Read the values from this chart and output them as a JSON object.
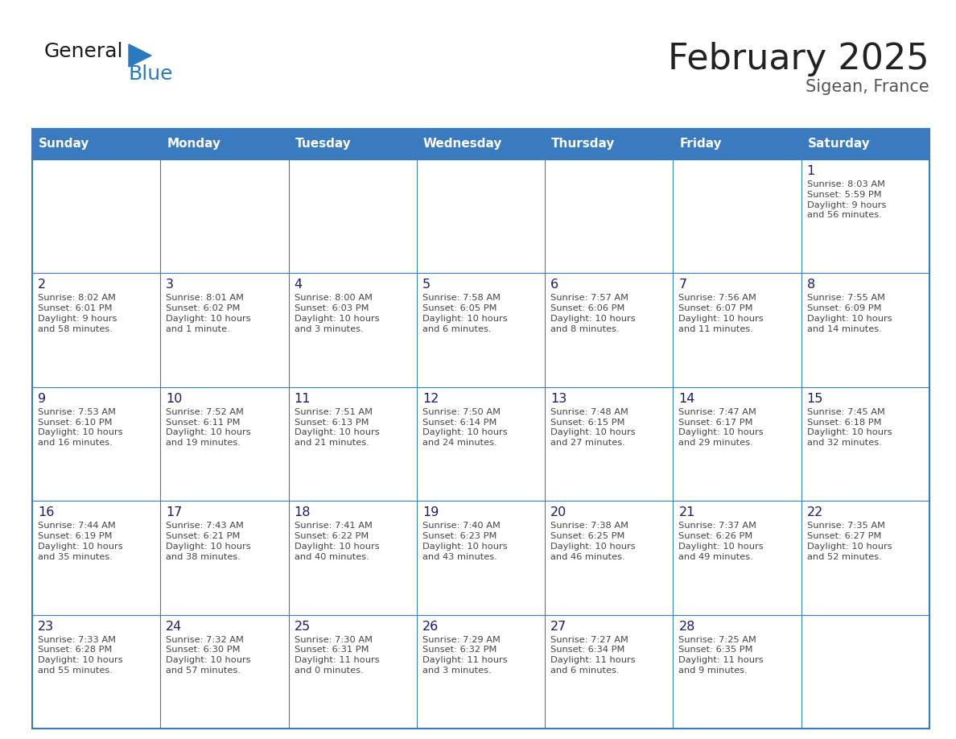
{
  "title": "February 2025",
  "subtitle": "Sigean, France",
  "days_of_week": [
    "Sunday",
    "Monday",
    "Tuesday",
    "Wednesday",
    "Thursday",
    "Friday",
    "Saturday"
  ],
  "header_bg": "#3a7abf",
  "header_text": "#ffffff",
  "cell_bg": "#ffffff",
  "border_color": "#3a7abf",
  "day_number_color": "#1a1a6e",
  "info_text_color": "#444444",
  "title_color": "#222222",
  "logo_general_color": "#1a1a1a",
  "logo_blue_color": "#2a7abf",
  "logo_triangle_color": "#2a7abf",
  "calendar": [
    [
      null,
      null,
      null,
      null,
      null,
      null,
      1
    ],
    [
      2,
      3,
      4,
      5,
      6,
      7,
      8
    ],
    [
      9,
      10,
      11,
      12,
      13,
      14,
      15
    ],
    [
      16,
      17,
      18,
      19,
      20,
      21,
      22
    ],
    [
      23,
      24,
      25,
      26,
      27,
      28,
      null
    ]
  ],
  "sunrise_data": {
    "1": "Sunrise: 8:03 AM\nSunset: 5:59 PM\nDaylight: 9 hours\nand 56 minutes.",
    "2": "Sunrise: 8:02 AM\nSunset: 6:01 PM\nDaylight: 9 hours\nand 58 minutes.",
    "3": "Sunrise: 8:01 AM\nSunset: 6:02 PM\nDaylight: 10 hours\nand 1 minute.",
    "4": "Sunrise: 8:00 AM\nSunset: 6:03 PM\nDaylight: 10 hours\nand 3 minutes.",
    "5": "Sunrise: 7:58 AM\nSunset: 6:05 PM\nDaylight: 10 hours\nand 6 minutes.",
    "6": "Sunrise: 7:57 AM\nSunset: 6:06 PM\nDaylight: 10 hours\nand 8 minutes.",
    "7": "Sunrise: 7:56 AM\nSunset: 6:07 PM\nDaylight: 10 hours\nand 11 minutes.",
    "8": "Sunrise: 7:55 AM\nSunset: 6:09 PM\nDaylight: 10 hours\nand 14 minutes.",
    "9": "Sunrise: 7:53 AM\nSunset: 6:10 PM\nDaylight: 10 hours\nand 16 minutes.",
    "10": "Sunrise: 7:52 AM\nSunset: 6:11 PM\nDaylight: 10 hours\nand 19 minutes.",
    "11": "Sunrise: 7:51 AM\nSunset: 6:13 PM\nDaylight: 10 hours\nand 21 minutes.",
    "12": "Sunrise: 7:50 AM\nSunset: 6:14 PM\nDaylight: 10 hours\nand 24 minutes.",
    "13": "Sunrise: 7:48 AM\nSunset: 6:15 PM\nDaylight: 10 hours\nand 27 minutes.",
    "14": "Sunrise: 7:47 AM\nSunset: 6:17 PM\nDaylight: 10 hours\nand 29 minutes.",
    "15": "Sunrise: 7:45 AM\nSunset: 6:18 PM\nDaylight: 10 hours\nand 32 minutes.",
    "16": "Sunrise: 7:44 AM\nSunset: 6:19 PM\nDaylight: 10 hours\nand 35 minutes.",
    "17": "Sunrise: 7:43 AM\nSunset: 6:21 PM\nDaylight: 10 hours\nand 38 minutes.",
    "18": "Sunrise: 7:41 AM\nSunset: 6:22 PM\nDaylight: 10 hours\nand 40 minutes.",
    "19": "Sunrise: 7:40 AM\nSunset: 6:23 PM\nDaylight: 10 hours\nand 43 minutes.",
    "20": "Sunrise: 7:38 AM\nSunset: 6:25 PM\nDaylight: 10 hours\nand 46 minutes.",
    "21": "Sunrise: 7:37 AM\nSunset: 6:26 PM\nDaylight: 10 hours\nand 49 minutes.",
    "22": "Sunrise: 7:35 AM\nSunset: 6:27 PM\nDaylight: 10 hours\nand 52 minutes.",
    "23": "Sunrise: 7:33 AM\nSunset: 6:28 PM\nDaylight: 10 hours\nand 55 minutes.",
    "24": "Sunrise: 7:32 AM\nSunset: 6:30 PM\nDaylight: 10 hours\nand 57 minutes.",
    "25": "Sunrise: 7:30 AM\nSunset: 6:31 PM\nDaylight: 11 hours\nand 0 minutes.",
    "26": "Sunrise: 7:29 AM\nSunset: 6:32 PM\nDaylight: 11 hours\nand 3 minutes.",
    "27": "Sunrise: 7:27 AM\nSunset: 6:34 PM\nDaylight: 11 hours\nand 6 minutes.",
    "28": "Sunrise: 7:25 AM\nSunset: 6:35 PM\nDaylight: 11 hours\nand 9 minutes."
  }
}
